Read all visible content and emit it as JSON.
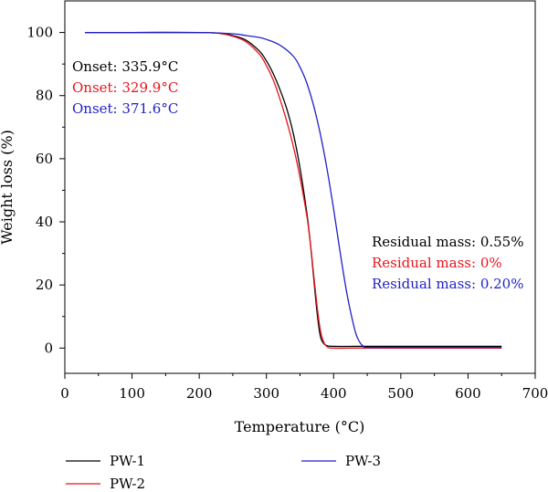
{
  "chart_data": {
    "type": "line",
    "xlabel": "Temperature (°C)",
    "ylabel": "Weight loss (%)",
    "xlim": [
      0,
      700
    ],
    "ylim": [
      -8,
      110
    ],
    "xticks": [
      0,
      100,
      200,
      300,
      400,
      500,
      600,
      700
    ],
    "yticks": [
      0,
      20,
      40,
      60,
      80,
      100
    ],
    "grid": false,
    "legend_position": "bottom",
    "colors": {
      "PW-1": "#000000",
      "PW-2": "#e8141c",
      "PW-3": "#1e22c8"
    },
    "series": [
      {
        "name": "PW-1",
        "color": "#000000",
        "x": [
          30,
          100,
          200,
          230,
          250,
          270,
          290,
          300,
          310,
          320,
          330,
          340,
          350,
          360,
          365,
          370,
          375,
          380,
          385,
          390,
          400,
          450,
          500,
          550,
          600,
          650
        ],
        "y": [
          100,
          100,
          100,
          99.8,
          99,
          97.5,
          94,
          91,
          87,
          82,
          76,
          68,
          57,
          43,
          34,
          23,
          12,
          4,
          1.5,
          0.8,
          0.55,
          0.55,
          0.55,
          0.55,
          0.55,
          0.55
        ]
      },
      {
        "name": "PW-2",
        "color": "#e8141c",
        "x": [
          30,
          100,
          200,
          230,
          250,
          270,
          290,
          300,
          310,
          320,
          330,
          340,
          350,
          360,
          365,
          370,
          375,
          380,
          385,
          390,
          400,
          450,
          500,
          550,
          600,
          650
        ],
        "y": [
          100,
          100,
          100,
          99.7,
          98.8,
          97,
          93,
          89.5,
          85,
          79,
          72,
          64,
          54,
          42,
          34,
          24,
          14,
          6,
          2,
          0.5,
          0,
          0,
          0,
          0,
          0,
          0
        ]
      },
      {
        "name": "PW-3",
        "color": "#1e22c8",
        "x": [
          30,
          100,
          200,
          250,
          270,
          290,
          300,
          320,
          340,
          350,
          360,
          370,
          380,
          390,
          400,
          410,
          420,
          430,
          435,
          440,
          445,
          450,
          500,
          550,
          600,
          650
        ],
        "y": [
          100,
          100,
          100,
          99.6,
          99,
          98.4,
          97.8,
          96,
          92.5,
          89,
          84,
          77,
          68,
          57,
          44,
          30,
          17,
          7,
          3.5,
          1.5,
          0.5,
          0.2,
          0.2,
          0.2,
          0.2,
          0.2
        ]
      }
    ],
    "annotations": {
      "onset": [
        {
          "text": "Onset: 335.9°C",
          "color": "#000000"
        },
        {
          "text": "Onset: 329.9°C",
          "color": "#e8141c"
        },
        {
          "text": "Onset: 371.6°C",
          "color": "#1e22c8"
        }
      ],
      "residual": [
        {
          "text": "Residual mass: 0.55%",
          "color": "#000000"
        },
        {
          "text": "Residual mass: 0%",
          "color": "#e8141c"
        },
        {
          "text": "Residual mass: 0.20%",
          "color": "#1e22c8"
        }
      ]
    }
  }
}
